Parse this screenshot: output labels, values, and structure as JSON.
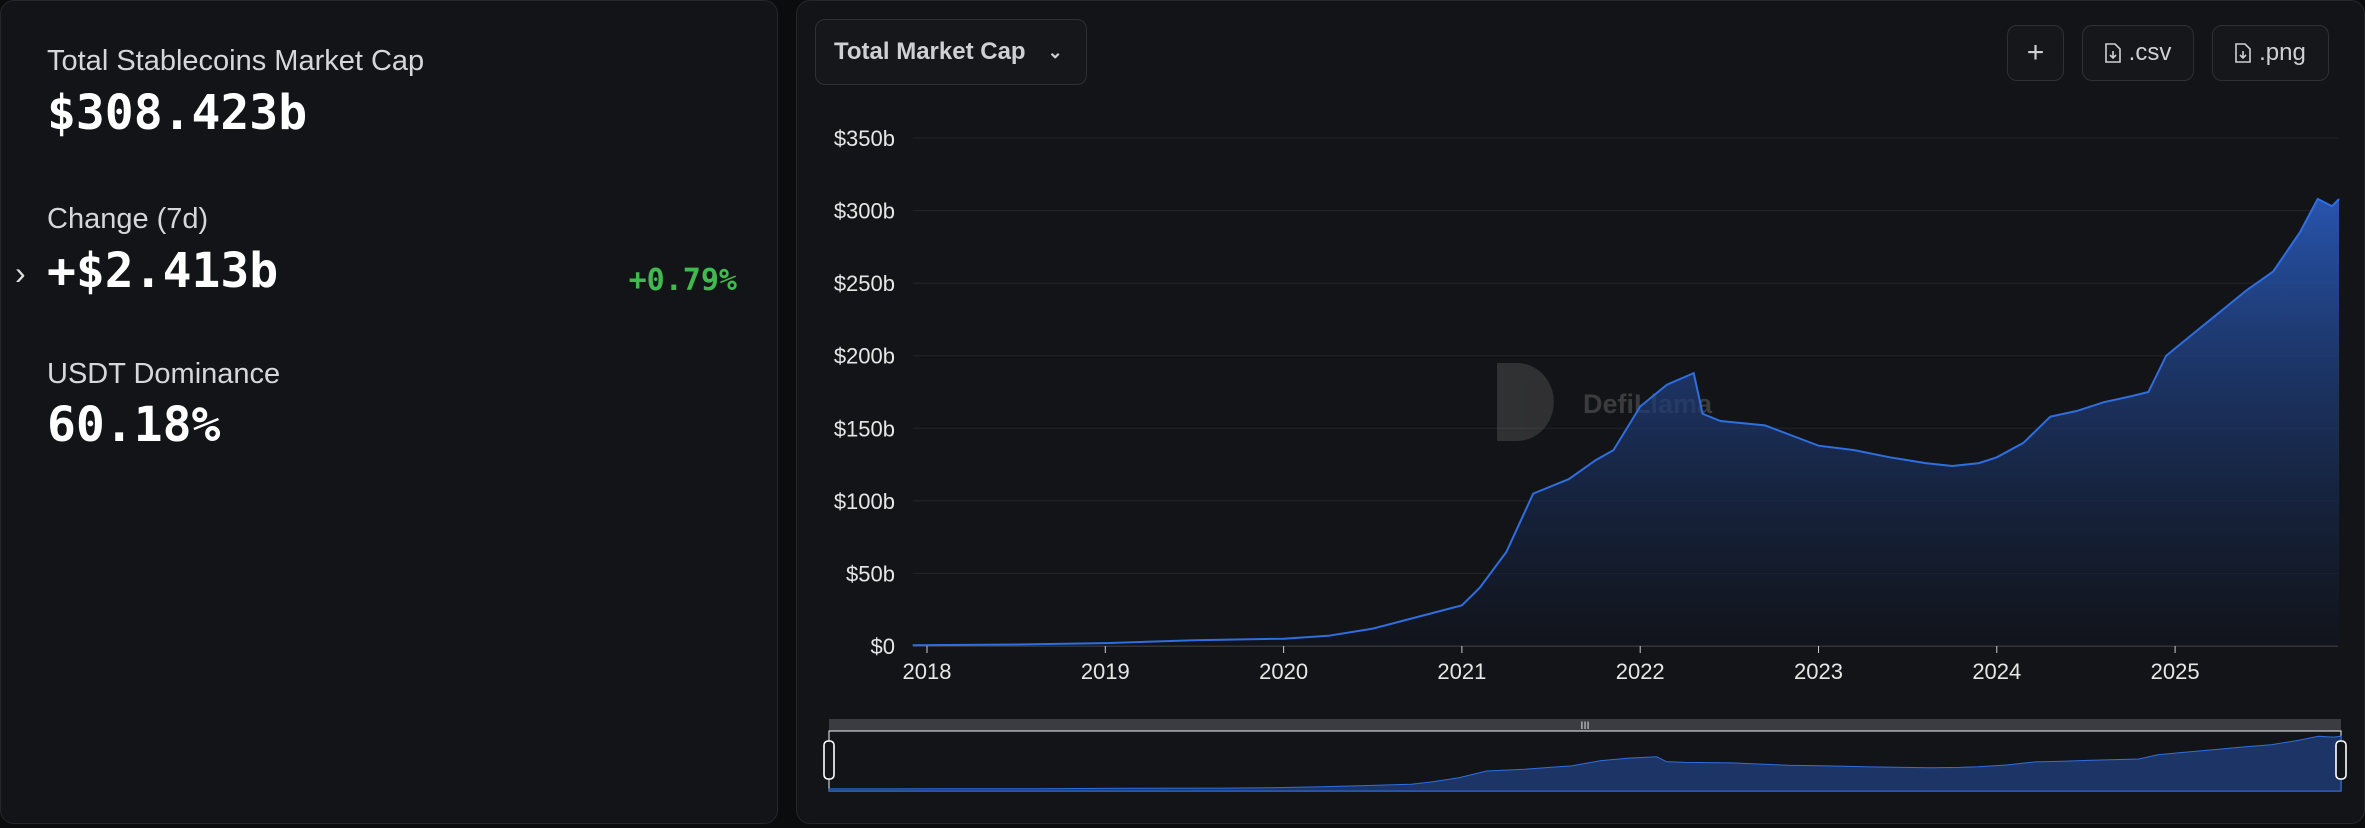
{
  "summary": {
    "total_label": "Total Stablecoins Market Cap",
    "total_value": "$308.423b",
    "change_label": "Change (7d)",
    "change_value": "+$2.413b",
    "change_pct": "+0.79%",
    "dominance_label": "USDT Dominance",
    "dominance_value": "60.18%"
  },
  "toolbar": {
    "dropdown_label": "Total Market Cap",
    "add_label": "+",
    "csv_label": ".csv",
    "png_label": ".png"
  },
  "watermark": "DefiLlama",
  "colors": {
    "accent": "#2f6ee0",
    "positive": "#3fb950",
    "background": "#131417"
  },
  "chart_data": {
    "type": "area",
    "ylim": [
      0,
      350
    ],
    "yticks": [
      "$0",
      "$50b",
      "$100b",
      "$150b",
      "$200b",
      "$250b",
      "$300b",
      "$350b"
    ],
    "xticks": [
      "2018",
      "2019",
      "2020",
      "2021",
      "2022",
      "2023",
      "2024",
      "2025"
    ],
    "grid": true,
    "series": [
      {
        "points": [
          [
            2017.92,
            0.5
          ],
          [
            2018.5,
            1
          ],
          [
            2019.0,
            2
          ],
          [
            2019.5,
            4
          ],
          [
            2020.0,
            5
          ],
          [
            2020.25,
            7
          ],
          [
            2020.5,
            12
          ],
          [
            2020.75,
            20
          ],
          [
            2021.0,
            28
          ],
          [
            2021.1,
            40
          ],
          [
            2021.25,
            65
          ],
          [
            2021.4,
            105
          ],
          [
            2021.6,
            115
          ],
          [
            2021.75,
            128
          ],
          [
            2021.85,
            135
          ],
          [
            2022.0,
            165
          ],
          [
            2022.15,
            180
          ],
          [
            2022.3,
            188
          ],
          [
            2022.35,
            160
          ],
          [
            2022.45,
            155
          ],
          [
            2022.7,
            152
          ],
          [
            2022.85,
            145
          ],
          [
            2023.0,
            138
          ],
          [
            2023.2,
            135
          ],
          [
            2023.4,
            130
          ],
          [
            2023.6,
            126
          ],
          [
            2023.75,
            124
          ],
          [
            2023.9,
            126
          ],
          [
            2024.0,
            130
          ],
          [
            2024.15,
            140
          ],
          [
            2024.3,
            158
          ],
          [
            2024.45,
            162
          ],
          [
            2024.6,
            168
          ],
          [
            2024.75,
            172
          ],
          [
            2024.85,
            175
          ],
          [
            2024.95,
            200
          ],
          [
            2025.1,
            215
          ],
          [
            2025.25,
            230
          ],
          [
            2025.4,
            245
          ],
          [
            2025.55,
            258
          ],
          [
            2025.7,
            285
          ],
          [
            2025.8,
            308
          ],
          [
            2025.88,
            303
          ],
          [
            2025.92,
            308
          ]
        ]
      }
    ]
  }
}
